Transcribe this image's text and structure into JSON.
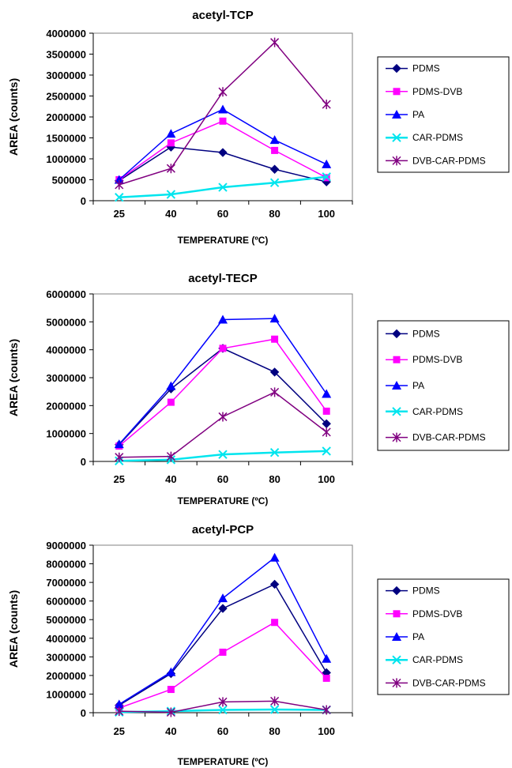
{
  "chart_data": [
    {
      "type": "line",
      "title": "acetyl-TCP",
      "xlabel": "TEMPERATURE (ºC)",
      "ylabel": "AREA (counts)",
      "categories": [
        "25",
        "40",
        "60",
        "80",
        "100"
      ],
      "ylim": [
        0,
        4000000
      ],
      "yticks": [
        "0",
        "500000",
        "1000000",
        "1500000",
        "2000000",
        "2500000",
        "3000000",
        "3500000",
        "4000000"
      ],
      "legend_position": "right",
      "series": [
        {
          "name": "PDMS",
          "color": "#000080",
          "marker": "diamond",
          "values": [
            480000,
            1280000,
            1150000,
            750000,
            450000
          ]
        },
        {
          "name": "PDMS-DVB",
          "color": "#ff00ff",
          "marker": "square",
          "values": [
            500000,
            1380000,
            1900000,
            1200000,
            550000
          ]
        },
        {
          "name": "PA",
          "color": "#0000ff",
          "marker": "triangle",
          "values": [
            500000,
            1600000,
            2180000,
            1450000,
            870000
          ]
        },
        {
          "name": "CAR-PDMS",
          "color": "#00e5ee",
          "marker": "x",
          "values": [
            80000,
            150000,
            320000,
            430000,
            570000
          ]
        },
        {
          "name": "DVB-CAR-PDMS",
          "color": "#800080",
          "marker": "star",
          "values": [
            380000,
            770000,
            2600000,
            3780000,
            2300000
          ]
        }
      ]
    },
    {
      "type": "line",
      "title": "acetyl-TECP",
      "xlabel": "TEMPERATURE (ºC)",
      "ylabel": "AREA (counts)",
      "categories": [
        "25",
        "40",
        "60",
        "80",
        "100"
      ],
      "ylim": [
        0,
        6000000
      ],
      "yticks": [
        "0",
        "1000000",
        "2000000",
        "3000000",
        "4000000",
        "5000000",
        "6000000"
      ],
      "legend_position": "right",
      "series": [
        {
          "name": "PDMS",
          "color": "#000080",
          "marker": "diamond",
          "values": [
            600000,
            2600000,
            4050000,
            3200000,
            1350000
          ]
        },
        {
          "name": "PDMS-DVB",
          "color": "#ff00ff",
          "marker": "square",
          "values": [
            550000,
            2120000,
            4050000,
            4380000,
            1800000
          ]
        },
        {
          "name": "PA",
          "color": "#0000ff",
          "marker": "triangle",
          "values": [
            620000,
            2700000,
            5080000,
            5120000,
            2420000
          ]
        },
        {
          "name": "CAR-PDMS",
          "color": "#00e5ee",
          "marker": "x",
          "values": [
            20000,
            60000,
            250000,
            320000,
            370000
          ]
        },
        {
          "name": "DVB-CAR-PDMS",
          "color": "#800080",
          "marker": "star",
          "values": [
            150000,
            180000,
            1600000,
            2480000,
            1050000
          ]
        }
      ]
    },
    {
      "type": "line",
      "title": "acetyl-PCP",
      "xlabel": "TEMPERATURE (ºC)",
      "ylabel": "AREA (counts)",
      "categories": [
        "25",
        "40",
        "60",
        "80",
        "100"
      ],
      "ylim": [
        0,
        9000000
      ],
      "yticks": [
        "0",
        "1000000",
        "2000000",
        "3000000",
        "4000000",
        "5000000",
        "6000000",
        "7000000",
        "8000000",
        "9000000"
      ],
      "legend_position": "right",
      "series": [
        {
          "name": "PDMS",
          "color": "#000080",
          "marker": "diamond",
          "values": [
            400000,
            2100000,
            5600000,
            6900000,
            2150000
          ]
        },
        {
          "name": "PDMS-DVB",
          "color": "#ff00ff",
          "marker": "square",
          "values": [
            250000,
            1250000,
            3250000,
            4850000,
            1850000
          ]
        },
        {
          "name": "PA",
          "color": "#0000ff",
          "marker": "triangle",
          "values": [
            450000,
            2180000,
            6150000,
            8330000,
            2900000
          ]
        },
        {
          "name": "CAR-PDMS",
          "color": "#00e5ee",
          "marker": "x",
          "values": [
            30000,
            80000,
            150000,
            170000,
            150000
          ]
        },
        {
          "name": "DVB-CAR-PDMS",
          "color": "#800080",
          "marker": "star",
          "values": [
            80000,
            20000,
            580000,
            620000,
            150000
          ]
        }
      ]
    }
  ]
}
